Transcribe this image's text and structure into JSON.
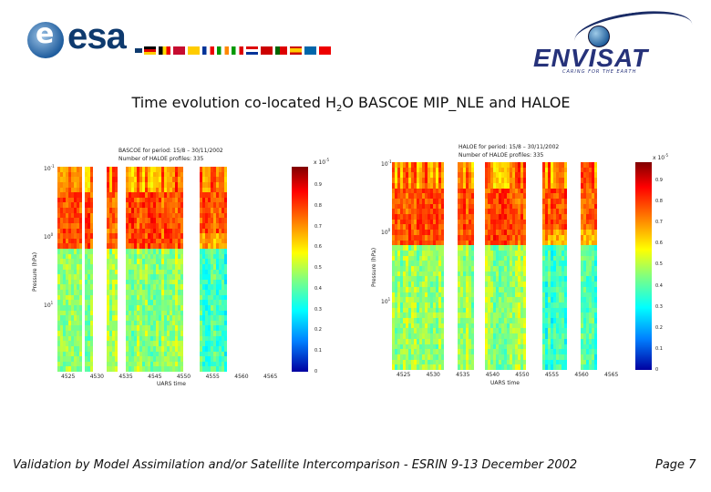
{
  "header": {
    "esa_logo_text": "esa",
    "envisat_logo_text": "ENVISAT",
    "envisat_tagline": "CARING FOR THE EARTH"
  },
  "title": {
    "prefix": "Time evolution co-located H",
    "subscript": "2",
    "suffix": "O BASCOE MIP_NLE and HALOE"
  },
  "left_plot": {
    "line1": "BASCOE for period: 15/8 – 30/11/2002",
    "line2": "Number of HALOE profiles: 335",
    "ylabel": "Pressure (hPa)",
    "xlabel": "UARS time",
    "yticks": [
      "10",
      "10",
      "10"
    ],
    "yexp": [
      "-1",
      "0",
      "1"
    ],
    "xticks": [
      "4525",
      "4530",
      "4535",
      "4545",
      "4550",
      "4555",
      "4560",
      "4565"
    ],
    "cbar_exp": "x 10",
    "cbar_exp_sup": "-5",
    "cbar_ticks": [
      "0.9",
      "0.8",
      "0.7",
      "0.6",
      "0.5",
      "0.4",
      "0.3",
      "0.2",
      "0.1",
      "0"
    ]
  },
  "right_plot": {
    "line1": "HALOE for period: 15/8 – 30/11/2002",
    "line2": "Number of HALOE profiles: 335",
    "ylabel": "Pressure (hPa)",
    "xlabel": "UARS time",
    "yticks": [
      "10",
      "10",
      "10"
    ],
    "yexp": [
      "-1",
      "0",
      "1"
    ],
    "xticks": [
      "4525",
      "4530",
      "4535",
      "4540",
      "4550",
      "4555",
      "4560",
      "4565"
    ],
    "cbar_exp": "x 10",
    "cbar_exp_sup": "-5",
    "cbar_ticks": [
      "0.9",
      "0.8",
      "0.7",
      "0.6",
      "0.5",
      "0.4",
      "0.3",
      "0.2",
      "0.1",
      "0"
    ]
  },
  "footer": {
    "text": "Validation by Model Assimilation and/or Satellite Intercomparison - ESRIN 9-13 December 2002",
    "page": "Page 7"
  }
}
